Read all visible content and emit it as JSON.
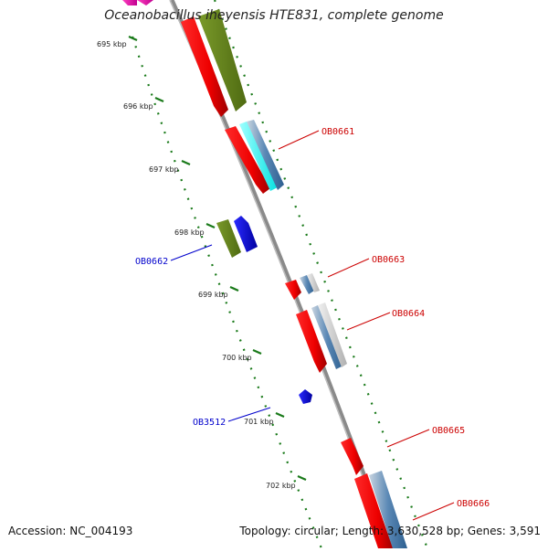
{
  "title": "Oceanobacillus iheyensis HTE831, complete genome",
  "accession": "Accession: NC_004193",
  "summary": "Topology: circular; Length: 3,630,528 bp; Genes: 3,591",
  "colors": {
    "forward_label": "#cc0000",
    "reverse_label": "#0000cc",
    "tick": "#1a7a1a",
    "backbone": "#8a8a8a"
  },
  "ticks": [
    {
      "label": "695 kbp"
    },
    {
      "label": "696 kbp"
    },
    {
      "label": "697 kbp"
    },
    {
      "label": "698 kbp"
    },
    {
      "label": "699 kbp"
    },
    {
      "label": "700 kbp"
    },
    {
      "label": "701 kbp"
    },
    {
      "label": "702 kbp"
    }
  ],
  "gene_labels": [
    {
      "text": "OB0661",
      "strand": "forward"
    },
    {
      "text": "OB0662",
      "strand": "reverse"
    },
    {
      "text": "OB0663",
      "strand": "forward"
    },
    {
      "text": "OB0664",
      "strand": "forward"
    },
    {
      "text": "OB3512",
      "strand": "reverse"
    },
    {
      "text": "OB0665",
      "strand": "forward"
    },
    {
      "text": "OB0666",
      "strand": "forward"
    }
  ]
}
